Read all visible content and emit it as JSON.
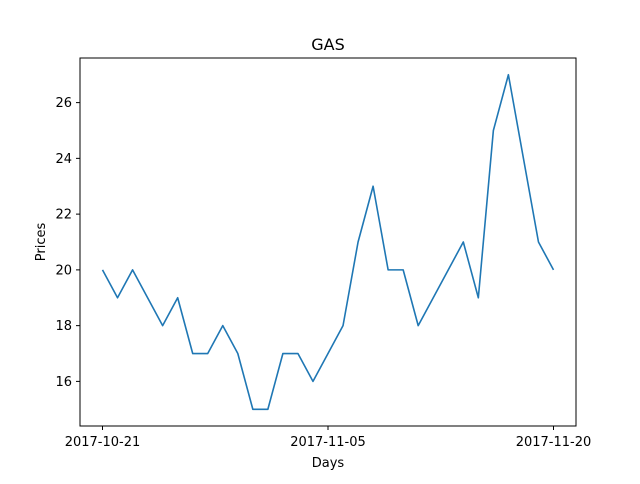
{
  "chart_data": {
    "type": "line",
    "title": "GAS",
    "xlabel": "Days",
    "ylabel": "Prices",
    "x": [
      "2017-10-21",
      "2017-10-22",
      "2017-10-23",
      "2017-10-24",
      "2017-10-25",
      "2017-10-26",
      "2017-10-27",
      "2017-10-28",
      "2017-10-29",
      "2017-10-30",
      "2017-10-31",
      "2017-11-01",
      "2017-11-02",
      "2017-11-03",
      "2017-11-04",
      "2017-11-05",
      "2017-11-06",
      "2017-11-07",
      "2017-11-08",
      "2017-11-09",
      "2017-11-10",
      "2017-11-11",
      "2017-11-12",
      "2017-11-13",
      "2017-11-14",
      "2017-11-15",
      "2017-11-16",
      "2017-11-17",
      "2017-11-18",
      "2017-11-19",
      "2017-11-20"
    ],
    "series": [
      {
        "values": [
          20,
          19,
          20,
          19,
          18,
          19,
          17,
          17,
          18,
          17,
          15,
          15,
          17,
          17,
          16,
          17,
          18,
          21,
          23,
          20,
          20,
          18,
          19,
          20,
          21,
          19,
          25,
          27,
          24,
          21,
          20
        ]
      }
    ],
    "xticks": [
      "2017-10-21",
      "2017-11-05",
      "2017-11-20"
    ],
    "yticks": [
      16,
      18,
      20,
      22,
      24,
      26
    ],
    "ylim": [
      14.4,
      27.6
    ],
    "line_color": "#1f77b4",
    "grid": false,
    "legend": "none"
  }
}
